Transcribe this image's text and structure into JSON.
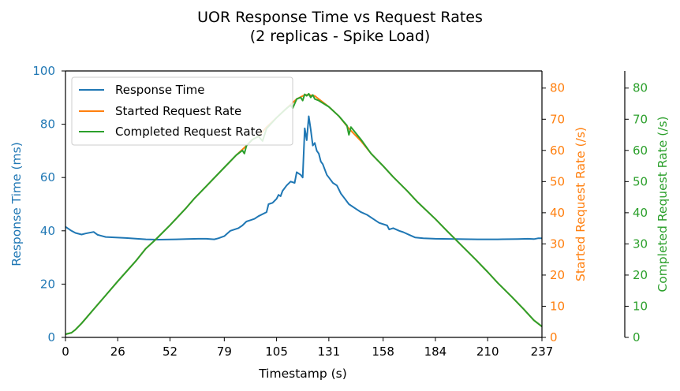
{
  "chart_data": {
    "type": "line",
    "title": "UOR Response Time vs Request Rates",
    "subtitle": "(2 replicas  - Spike Load)",
    "xlabel": "Timestamp (s)",
    "xlim": [
      0,
      237
    ],
    "xticks": [
      0,
      26,
      52,
      79,
      105,
      131,
      158,
      184,
      210,
      237
    ],
    "grid": false,
    "legend_position": "top-left",
    "axes": {
      "left": {
        "label": "Response Time (ms)",
        "ylim": [
          0,
          100
        ],
        "ticks": [
          0,
          20,
          40,
          60,
          80,
          100
        ],
        "color": "#1f77b4"
      },
      "right1": {
        "label": "Started Request Rate (/s)",
        "ylim": [
          0,
          85.5
        ],
        "ticks": [
          0,
          10,
          20,
          30,
          40,
          50,
          60,
          70,
          80
        ],
        "color": "#ff7f0e"
      },
      "right2": {
        "label": "Completed Request Rate (/s)",
        "ylim": [
          0,
          85.5
        ],
        "ticks": [
          0,
          10,
          20,
          30,
          40,
          50,
          60,
          70,
          80
        ],
        "color": "#2ca02c"
      }
    },
    "series": [
      {
        "name": "Response Time",
        "axis": "left",
        "color": "#1f77b4",
        "points": [
          [
            0,
            41.5
          ],
          [
            3,
            40
          ],
          [
            5,
            39.2
          ],
          [
            8,
            38.6
          ],
          [
            10,
            39
          ],
          [
            14,
            39.6
          ],
          [
            16,
            38.5
          ],
          [
            20,
            37.7
          ],
          [
            30,
            37.3
          ],
          [
            40,
            36.8
          ],
          [
            46,
            36.7
          ],
          [
            55,
            36.8
          ],
          [
            60,
            36.9
          ],
          [
            66,
            37
          ],
          [
            70,
            37
          ],
          [
            74,
            36.8
          ],
          [
            76,
            37.2
          ],
          [
            79,
            38
          ],
          [
            82,
            40
          ],
          [
            86,
            41
          ],
          [
            88,
            42
          ],
          [
            90,
            43.5
          ],
          [
            92,
            44
          ],
          [
            94,
            44.5
          ],
          [
            96,
            45.5
          ],
          [
            100,
            47
          ],
          [
            101,
            50
          ],
          [
            103,
            50.5
          ],
          [
            105,
            52
          ],
          [
            106,
            53.5
          ],
          [
            107,
            53
          ],
          [
            108,
            55
          ],
          [
            110,
            57
          ],
          [
            112,
            58.5
          ],
          [
            114,
            58
          ],
          [
            115,
            62
          ],
          [
            117,
            61
          ],
          [
            118,
            60
          ],
          [
            119,
            78.5
          ],
          [
            120,
            74
          ],
          [
            121,
            83
          ],
          [
            122,
            78
          ],
          [
            123,
            72
          ],
          [
            124,
            73
          ],
          [
            125,
            70
          ],
          [
            126,
            69
          ],
          [
            127,
            66
          ],
          [
            128,
            65
          ],
          [
            130,
            61
          ],
          [
            131,
            60
          ],
          [
            133,
            58
          ],
          [
            135,
            57
          ],
          [
            137,
            54
          ],
          [
            139,
            52
          ],
          [
            141,
            50
          ],
          [
            145,
            48
          ],
          [
            147,
            47
          ],
          [
            150,
            46
          ],
          [
            153,
            44.5
          ],
          [
            156,
            43
          ],
          [
            160,
            42
          ],
          [
            161,
            40.5
          ],
          [
            163,
            41
          ],
          [
            166,
            40
          ],
          [
            168,
            39.5
          ],
          [
            171,
            38.5
          ],
          [
            174,
            37.5
          ],
          [
            178,
            37.2
          ],
          [
            184,
            37
          ],
          [
            195,
            36.9
          ],
          [
            205,
            36.8
          ],
          [
            215,
            36.8
          ],
          [
            225,
            36.9
          ],
          [
            230,
            37
          ],
          [
            233,
            36.9
          ],
          [
            235,
            37.2
          ],
          [
            237,
            37.2
          ]
        ]
      },
      {
        "name": "Started Request Rate",
        "axis": "right1",
        "color": "#ff7f0e",
        "points": [
          [
            0,
            1
          ],
          [
            3,
            1.5
          ],
          [
            5,
            2.5
          ],
          [
            8,
            4.5
          ],
          [
            10,
            6
          ],
          [
            14,
            9
          ],
          [
            20,
            13.5
          ],
          [
            26,
            18
          ],
          [
            35,
            24.5
          ],
          [
            40,
            28.5
          ],
          [
            45,
            31.5
          ],
          [
            52,
            36
          ],
          [
            60,
            41.5
          ],
          [
            64,
            44.5
          ],
          [
            70,
            48.5
          ],
          [
            79,
            54.5
          ],
          [
            85,
            58.5
          ],
          [
            90,
            61.5
          ],
          [
            93,
            63.5
          ],
          [
            96,
            64.5
          ],
          [
            100,
            67.5
          ],
          [
            105,
            70.5
          ],
          [
            110,
            73.5
          ],
          [
            115,
            76.5
          ],
          [
            119,
            77.8
          ],
          [
            121,
            77.8
          ],
          [
            124,
            77.5
          ],
          [
            126,
            76.5
          ],
          [
            131,
            74
          ],
          [
            136,
            71
          ],
          [
            141,
            67
          ],
          [
            147,
            63
          ],
          [
            152,
            59
          ],
          [
            158,
            55
          ],
          [
            163,
            51.5
          ],
          [
            170,
            47
          ],
          [
            175,
            43.5
          ],
          [
            184,
            38
          ],
          [
            190,
            34
          ],
          [
            197,
            29.5
          ],
          [
            204,
            25
          ],
          [
            210,
            21
          ],
          [
            215,
            17.5
          ],
          [
            222,
            13
          ],
          [
            228,
            9
          ],
          [
            233,
            5.5
          ],
          [
            237,
            3.5
          ]
        ]
      },
      {
        "name": "Completed Request Rate",
        "axis": "right2",
        "color": "#2ca02c",
        "points": [
          [
            0,
            1
          ],
          [
            3,
            1.5
          ],
          [
            5,
            2.5
          ],
          [
            8,
            4.5
          ],
          [
            10,
            6
          ],
          [
            14,
            9
          ],
          [
            20,
            13.5
          ],
          [
            26,
            18
          ],
          [
            35,
            24.5
          ],
          [
            40,
            28.5
          ],
          [
            45,
            31.5
          ],
          [
            52,
            36
          ],
          [
            60,
            41.5
          ],
          [
            64,
            44.5
          ],
          [
            70,
            48.5
          ],
          [
            79,
            54.5
          ],
          [
            85,
            58.5
          ],
          [
            88,
            60
          ],
          [
            89,
            59
          ],
          [
            90,
            61.5
          ],
          [
            93,
            63.5
          ],
          [
            96,
            64.5
          ],
          [
            98,
            63
          ],
          [
            100,
            67
          ],
          [
            105,
            70.5
          ],
          [
            110,
            73.5
          ],
          [
            112,
            74.5
          ],
          [
            113,
            73.5
          ],
          [
            115,
            76.5
          ],
          [
            117,
            77
          ],
          [
            118,
            76
          ],
          [
            119,
            78
          ],
          [
            120,
            77.5
          ],
          [
            121,
            78.2
          ],
          [
            122,
            77
          ],
          [
            123,
            77.8
          ],
          [
            124,
            76.5
          ],
          [
            126,
            76
          ],
          [
            131,
            74
          ],
          [
            136,
            71
          ],
          [
            140,
            68
          ],
          [
            141,
            65
          ],
          [
            142,
            67.5
          ],
          [
            147,
            63.5
          ],
          [
            152,
            59
          ],
          [
            158,
            55
          ],
          [
            163,
            51.5
          ],
          [
            170,
            47
          ],
          [
            175,
            43.5
          ],
          [
            184,
            38
          ],
          [
            190,
            34
          ],
          [
            197,
            29.5
          ],
          [
            204,
            25
          ],
          [
            210,
            21
          ],
          [
            215,
            17.5
          ],
          [
            222,
            13
          ],
          [
            228,
            9
          ],
          [
            233,
            5.5
          ],
          [
            237,
            3.5
          ]
        ]
      }
    ]
  }
}
